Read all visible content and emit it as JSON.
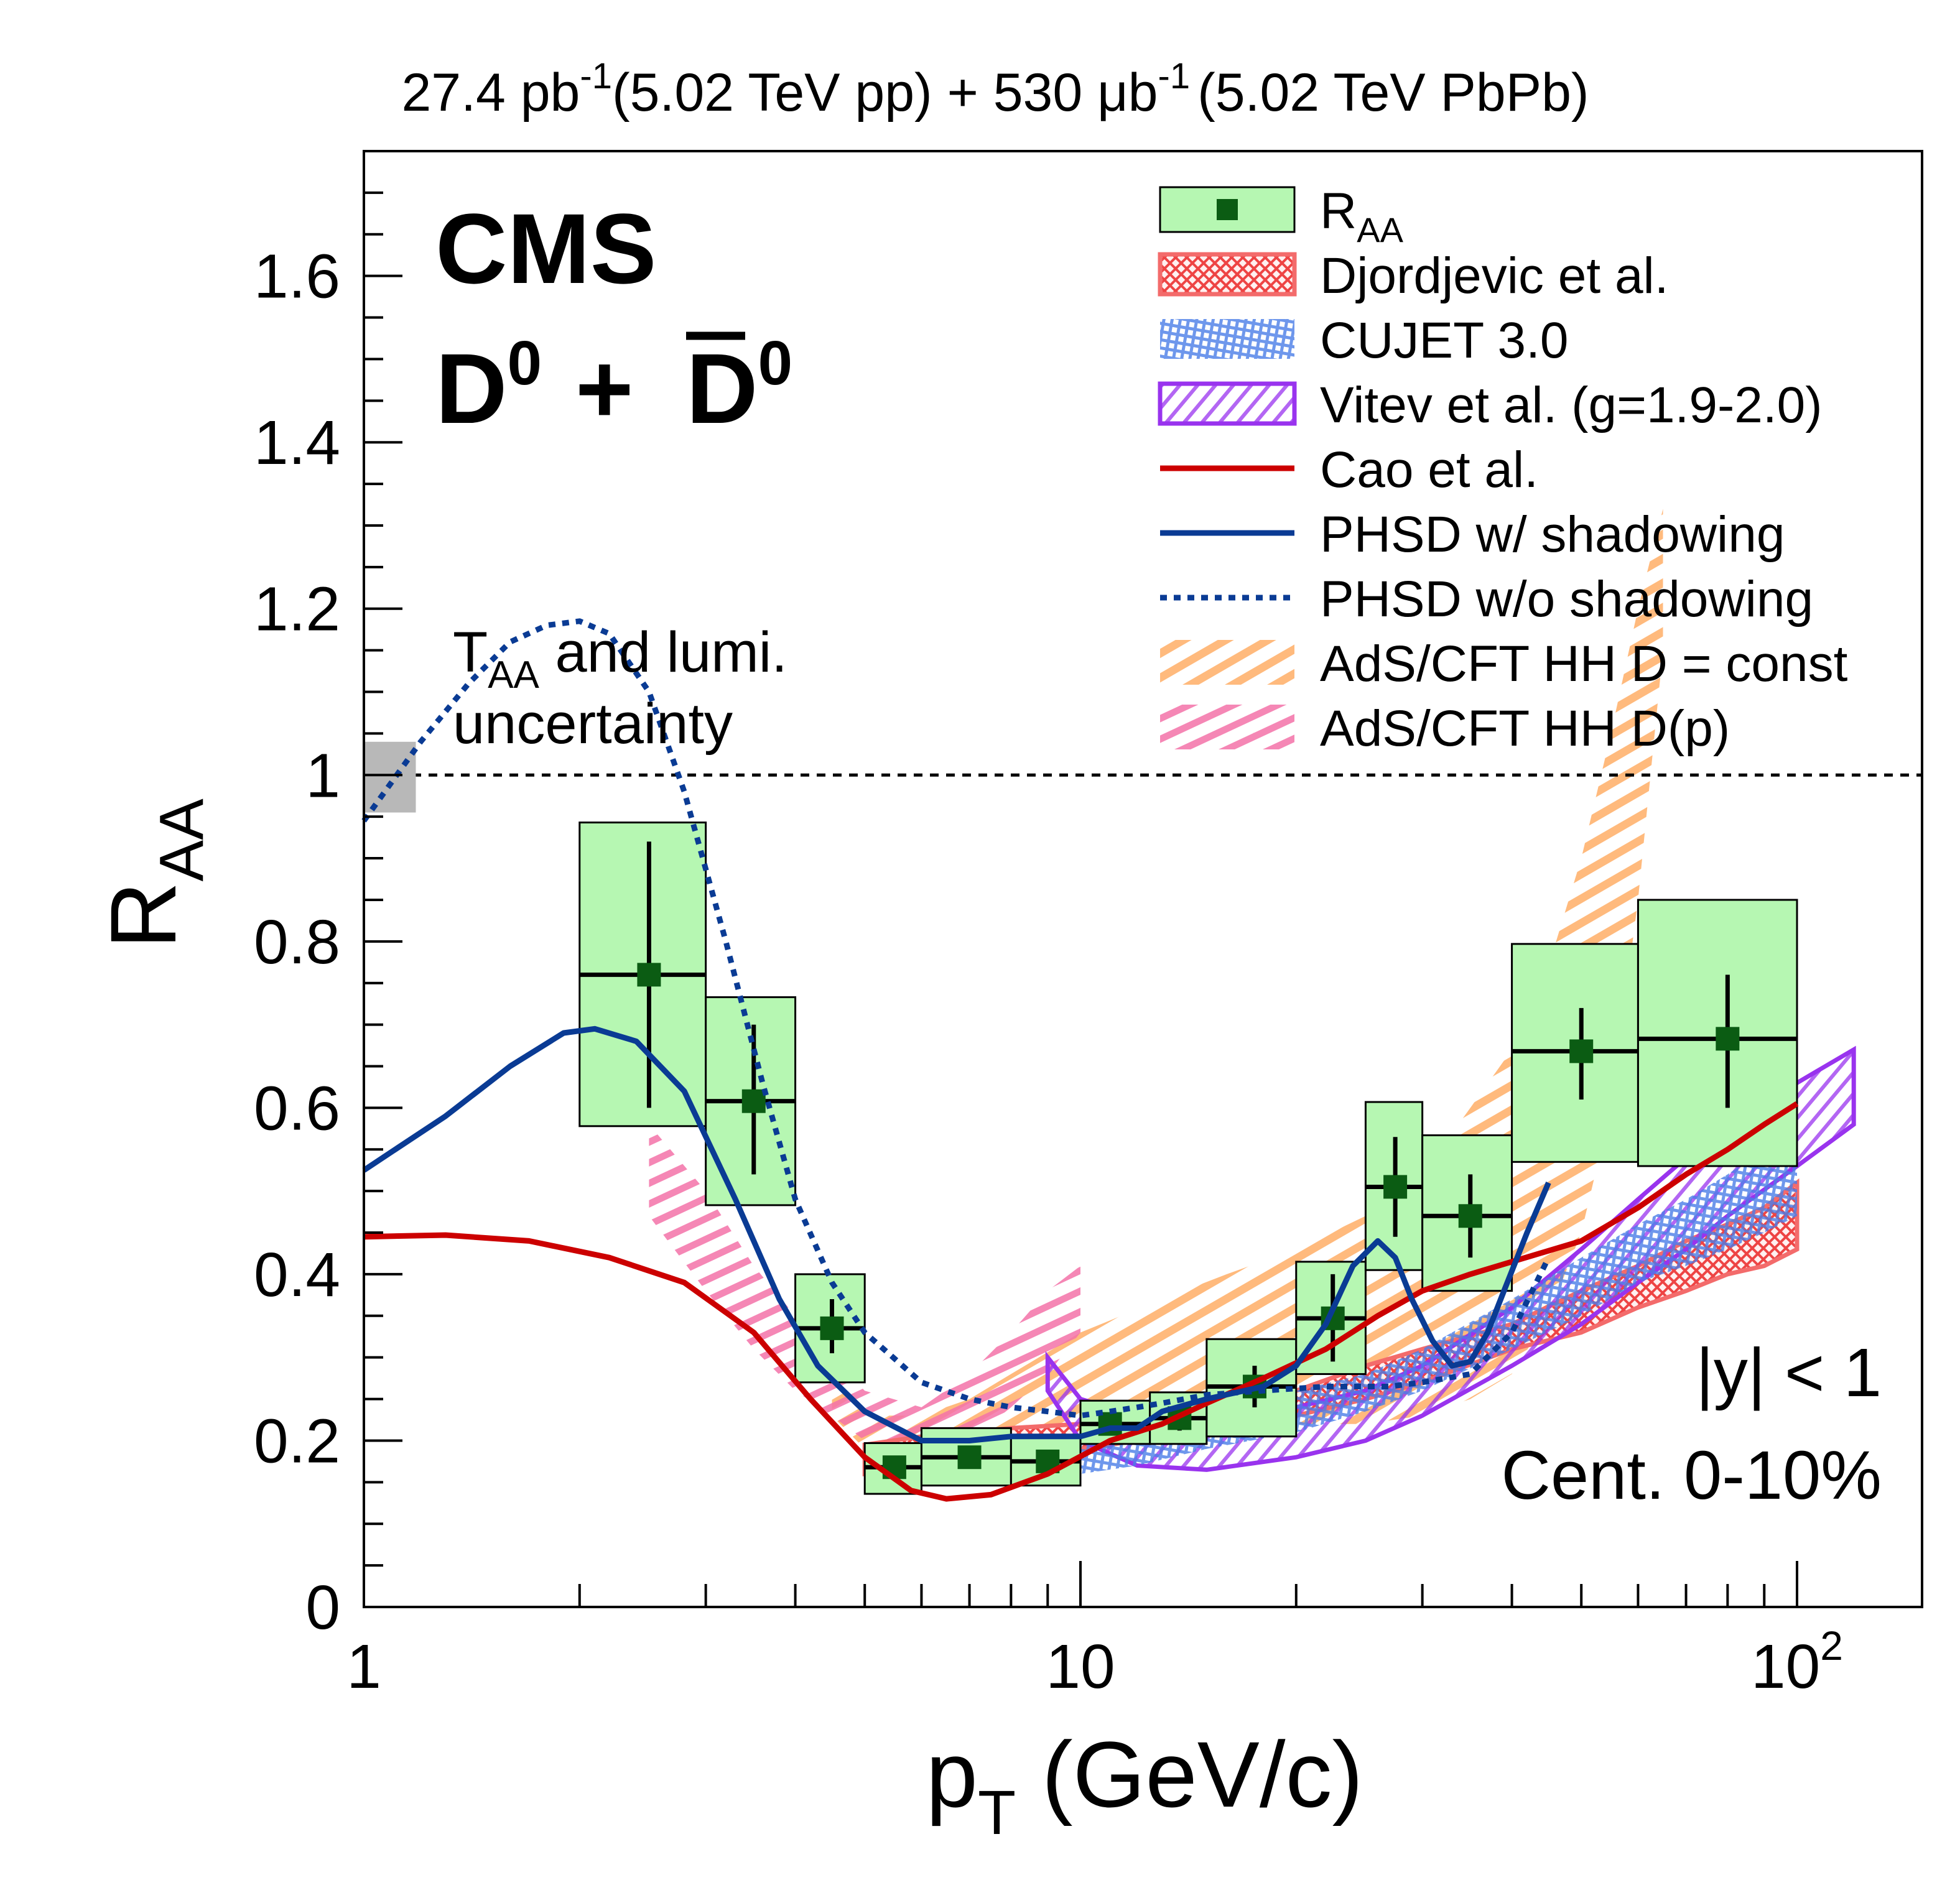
{
  "chart_data": {
    "type": "scatter",
    "header": {
      "lumi_pp": "27.4 pb",
      "lumi_pp_exp": "-1",
      "pp_label": "(5.02 TeV pp) + 530 ",
      "mu": "μ",
      "lumi_pbpb_unit": "b",
      "lumi_pbpb_exp": "-1",
      "pbpb_label": "(5.02 TeV PbPb)"
    },
    "experiment": "CMS",
    "particle": {
      "d": "D",
      "sup": "0",
      "plus": "+"
    },
    "taa_note": {
      "t": "T",
      "sub": "AA",
      "rest": " and lumi.",
      "line2": "uncertainty"
    },
    "selection": {
      "rapidity": "|y| < 1",
      "centrality": "Cent. 0-10%"
    },
    "xlabel": {
      "p": "p",
      "sub": "T",
      "rest": " (GeV/c)"
    },
    "ylabel": {
      "r": "R",
      "sub": "AA"
    },
    "x_scale": "log",
    "xlim": [
      1,
      150
    ],
    "ylim": [
      0,
      1.75
    ],
    "x_ticks": [
      {
        "value": 1,
        "label": "1"
      },
      {
        "value": 10,
        "label": "10"
      },
      {
        "value": 100,
        "label": "10",
        "sup": "2"
      }
    ],
    "y_ticks": [
      {
        "value": 0,
        "label": "0"
      },
      {
        "value": 0.2,
        "label": "0.2"
      },
      {
        "value": 0.4,
        "label": "0.4"
      },
      {
        "value": 0.6,
        "label": "0.6"
      },
      {
        "value": 0.8,
        "label": "0.8"
      },
      {
        "value": 1.0,
        "label": "1"
      },
      {
        "value": 1.2,
        "label": "1.2"
      },
      {
        "value": 1.4,
        "label": "1.4"
      },
      {
        "value": 1.6,
        "label": "1.6"
      }
    ],
    "reference_line": 1.0,
    "taa_box": {
      "x": [
        1.0,
        1.08
      ],
      "y": [
        0.955,
        1.04
      ]
    },
    "legend": [
      {
        "label": "R",
        "sub": "AA",
        "style": "data"
      },
      {
        "label": "Djordjevic et al.",
        "style": "crosshatch",
        "color": "#ee4444"
      },
      {
        "label": "CUJET 3.0",
        "style": "crosshatch",
        "color": "#4a7de8"
      },
      {
        "label": "Vitev et al. (g=1.9-2.0)",
        "style": "hatch",
        "color": "#9933ee"
      },
      {
        "label": "Cao et al.",
        "style": "line",
        "color": "#cc0000"
      },
      {
        "label": "PHSD w/ shadowing",
        "style": "line",
        "color": "#0a3b94"
      },
      {
        "label": "PHSD w/o shadowing",
        "style": "dotted",
        "color": "#0a3b94"
      },
      {
        "label": "AdS/CFT HH D = const",
        "style": "stripe",
        "color": "#ffae66"
      },
      {
        "label": "AdS/CFT HH D(p)",
        "style": "stripe",
        "color": "#f372a8"
      }
    ],
    "data_points": [
      {
        "x": 2.5,
        "xlo": 2.0,
        "xhi": 3.0,
        "y": 0.76,
        "stat": [
          0.6,
          0.92
        ],
        "sys": [
          0.578,
          0.943
        ]
      },
      {
        "x": 3.5,
        "xlo": 3.0,
        "xhi": 4.0,
        "y": 0.608,
        "stat": [
          0.52,
          0.7
        ],
        "sys": [
          0.483,
          0.733
        ]
      },
      {
        "x": 4.5,
        "xlo": 4.0,
        "xhi": 5.0,
        "y": 0.335,
        "stat": [
          0.305,
          0.37
        ],
        "sys": [
          0.27,
          0.4
        ]
      },
      {
        "x": 5.5,
        "xlo": 5.0,
        "xhi": 6.0,
        "y": 0.168,
        "stat": [
          0.163,
          0.174
        ],
        "sys": [
          0.136,
          0.197
        ]
      },
      {
        "x": 7.0,
        "xlo": 6.0,
        "xhi": 8.0,
        "y": 0.18,
        "stat": [
          0.175,
          0.185
        ],
        "sys": [
          0.146,
          0.215
        ]
      },
      {
        "x": 9.0,
        "xlo": 8.0,
        "xhi": 10.0,
        "y": 0.175,
        "stat": [
          0.17,
          0.18
        ],
        "sys": [
          0.146,
          0.206
        ]
      },
      {
        "x": 11.0,
        "xlo": 10.0,
        "xhi": 12.5,
        "y": 0.22,
        "stat": [
          0.21,
          0.23
        ],
        "sys": [
          0.196,
          0.248
        ]
      },
      {
        "x": 13.75,
        "xlo": 12.5,
        "xhi": 15.0,
        "y": 0.227,
        "stat": [
          0.212,
          0.242
        ],
        "sys": [
          0.196,
          0.258
        ]
      },
      {
        "x": 17.5,
        "xlo": 15.0,
        "xhi": 20.0,
        "y": 0.265,
        "stat": [
          0.24,
          0.29
        ],
        "sys": [
          0.205,
          0.322
        ]
      },
      {
        "x": 22.5,
        "xlo": 20.0,
        "xhi": 25.0,
        "y": 0.347,
        "stat": [
          0.295,
          0.4
        ],
        "sys": [
          0.28,
          0.415
        ]
      },
      {
        "x": 27.5,
        "xlo": 25.0,
        "xhi": 30.0,
        "y": 0.505,
        "stat": [
          0.445,
          0.565
        ],
        "sys": [
          0.405,
          0.607
        ]
      },
      {
        "x": 35.0,
        "xlo": 30.0,
        "xhi": 40.0,
        "y": 0.47,
        "stat": [
          0.42,
          0.52
        ],
        "sys": [
          0.38,
          0.567
        ]
      },
      {
        "x": 50.0,
        "xlo": 40.0,
        "xhi": 60.0,
        "y": 0.668,
        "stat": [
          0.61,
          0.72
        ],
        "sys": [
          0.535,
          0.797
        ]
      },
      {
        "x": 80.0,
        "xlo": 60.0,
        "xhi": 100.0,
        "y": 0.683,
        "stat": [
          0.6,
          0.76
        ],
        "sys": [
          0.53,
          0.85
        ]
      }
    ],
    "curves": {
      "cao": {
        "x": [
          1.0,
          1.3,
          1.7,
          2.2,
          2.8,
          3.5,
          4.2,
          5.0,
          5.8,
          6.5,
          7.5,
          9.0,
          11,
          13,
          15,
          18,
          22,
          26,
          30,
          35,
          40,
          50,
          60,
          70,
          80,
          90,
          100
        ],
        "y": [
          0.445,
          0.447,
          0.44,
          0.42,
          0.39,
          0.33,
          0.25,
          0.18,
          0.14,
          0.13,
          0.135,
          0.16,
          0.2,
          0.22,
          0.245,
          0.275,
          0.31,
          0.35,
          0.38,
          0.4,
          0.415,
          0.44,
          0.48,
          0.52,
          0.55,
          0.58,
          0.605
        ]
      },
      "phsd_shadow": {
        "x": [
          1.0,
          1.3,
          1.6,
          1.9,
          2.1,
          2.4,
          2.8,
          3.3,
          3.8,
          4.3,
          5.0,
          6.0,
          7.0,
          8.0,
          9.0,
          10.0,
          11,
          12,
          13,
          15,
          18,
          20,
          22,
          24,
          26,
          27.5,
          29,
          31,
          33,
          35,
          37,
          39,
          42,
          45
        ],
        "y": [
          0.525,
          0.59,
          0.65,
          0.69,
          0.695,
          0.68,
          0.62,
          0.49,
          0.37,
          0.29,
          0.235,
          0.2,
          0.2,
          0.205,
          0.205,
          0.205,
          0.215,
          0.215,
          0.235,
          0.25,
          0.265,
          0.29,
          0.34,
          0.41,
          0.44,
          0.42,
          0.37,
          0.32,
          0.29,
          0.295,
          0.33,
          0.38,
          0.45,
          0.51
        ]
      },
      "phsd_noshadow": {
        "x": [
          1.0,
          1.2,
          1.4,
          1.6,
          1.8,
          2.0,
          2.2,
          2.5,
          2.8,
          3.2,
          3.6,
          4.0,
          4.5,
          5.0,
          6.0,
          7.0,
          8.0,
          9.0,
          10,
          11,
          12,
          13,
          15,
          18,
          22,
          27,
          30,
          35,
          40,
          45
        ],
        "y": [
          0.945,
          1.04,
          1.11,
          1.16,
          1.18,
          1.185,
          1.17,
          1.1,
          0.98,
          0.8,
          0.63,
          0.49,
          0.39,
          0.33,
          0.27,
          0.25,
          0.24,
          0.235,
          0.23,
          0.235,
          0.24,
          0.245,
          0.255,
          0.26,
          0.265,
          0.265,
          0.27,
          0.28,
          0.33,
          0.42
        ]
      },
      "djordjevic": {
        "x": [
          5,
          6,
          7,
          8,
          10,
          12,
          15,
          20,
          25,
          30,
          40,
          50,
          60,
          70,
          80,
          90,
          100
        ],
        "lo": [
          0.16,
          0.17,
          0.18,
          0.185,
          0.19,
          0.2,
          0.21,
          0.23,
          0.25,
          0.27,
          0.31,
          0.33,
          0.36,
          0.38,
          0.4,
          0.41,
          0.43
        ],
        "hi": [
          0.195,
          0.205,
          0.21,
          0.215,
          0.22,
          0.23,
          0.24,
          0.26,
          0.29,
          0.31,
          0.34,
          0.38,
          0.41,
          0.44,
          0.46,
          0.48,
          0.51
        ]
      },
      "cujet": {
        "x": [
          10,
          12,
          15,
          20,
          25,
          30,
          40,
          50,
          60,
          70,
          80,
          90,
          100
        ],
        "lo": [
          0.16,
          0.17,
          0.19,
          0.21,
          0.235,
          0.26,
          0.31,
          0.35,
          0.39,
          0.41,
          0.43,
          0.45,
          0.47
        ],
        "hi": [
          0.2,
          0.215,
          0.235,
          0.26,
          0.28,
          0.31,
          0.37,
          0.42,
          0.46,
          0.49,
          0.52,
          0.55,
          0.58
        ]
      },
      "vitev": {
        "x": [
          9,
          10,
          12,
          15,
          20,
          25,
          30,
          40,
          50,
          60,
          70,
          80,
          100,
          120
        ],
        "lo": [
          0.26,
          0.2,
          0.17,
          0.165,
          0.18,
          0.2,
          0.23,
          0.29,
          0.34,
          0.39,
          0.43,
          0.47,
          0.53,
          0.58
        ],
        "hi": [
          0.3,
          0.25,
          0.23,
          0.22,
          0.24,
          0.26,
          0.29,
          0.36,
          0.43,
          0.49,
          0.54,
          0.58,
          0.63,
          0.67
        ]
      },
      "ads_const": {
        "x": [
          4.5,
          5,
          6,
          7,
          8,
          10,
          13,
          16,
          20,
          25,
          30,
          35,
          40,
          45,
          50,
          55,
          60,
          65
        ],
        "lo": [
          0.23,
          0.19,
          0.17,
          0.17,
          0.18,
          0.2,
          0.22,
          0.22,
          0.22,
          0.22,
          0.23,
          0.25,
          0.28,
          0.35,
          0.45,
          0.6,
          0.85,
          1.15
        ],
        "hi": [
          0.27,
          0.23,
          0.23,
          0.25,
          0.28,
          0.33,
          0.37,
          0.4,
          0.43,
          0.47,
          0.52,
          0.6,
          0.67,
          0.77,
          0.9,
          1.05,
          1.2,
          1.32
        ]
      },
      "ads_dp": {
        "x": [
          2.5,
          3.0,
          3.5,
          4.0,
          4.5,
          5,
          6,
          7,
          8,
          9,
          10
        ],
        "lo": [
          0.47,
          0.38,
          0.31,
          0.26,
          0.23,
          0.2,
          0.18,
          0.2,
          0.24,
          0.28,
          0.33
        ],
        "hi": [
          0.58,
          0.5,
          0.41,
          0.35,
          0.3,
          0.26,
          0.24,
          0.28,
          0.33,
          0.38,
          0.41
        ]
      }
    }
  }
}
